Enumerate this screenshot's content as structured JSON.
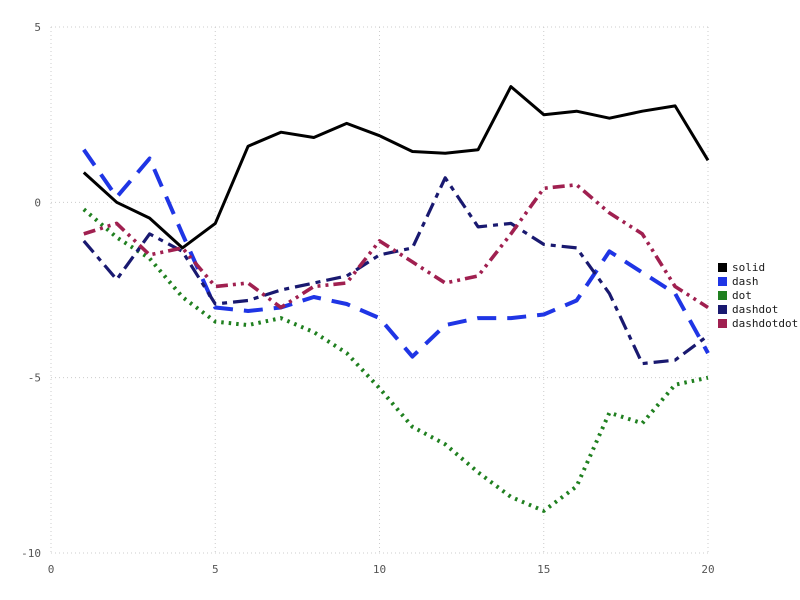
{
  "chart_data": {
    "type": "line",
    "title": "",
    "xlabel": "",
    "ylabel": "",
    "xlim": [
      0,
      20
    ],
    "ylim": [
      -10,
      5
    ],
    "xticks": [
      0,
      5,
      10,
      15,
      20
    ],
    "yticks": [
      -10,
      -5,
      0,
      5
    ],
    "grid": true,
    "legend_position": "right",
    "x": [
      1,
      2,
      3,
      4,
      5,
      6,
      7,
      8,
      9,
      10,
      11,
      12,
      13,
      14,
      15,
      16,
      17,
      18,
      19,
      20
    ],
    "series": [
      {
        "name": "solid",
        "color": "#000000",
        "style": "solid",
        "values": [
          0.85,
          0.0,
          -0.45,
          -1.3,
          -0.6,
          1.6,
          2.0,
          1.85,
          2.25,
          1.9,
          1.45,
          1.4,
          1.5,
          3.3,
          2.5,
          2.6,
          2.4,
          2.6,
          2.75,
          1.2
        ]
      },
      {
        "name": "dash",
        "color": "#1f35e5",
        "style": "dash",
        "values": [
          1.5,
          0.15,
          1.25,
          -0.9,
          -3.0,
          -3.1,
          -3.0,
          -2.7,
          -2.9,
          -3.3,
          -4.4,
          -3.5,
          -3.3,
          -3.3,
          -3.2,
          -2.8,
          -1.4,
          -2.0,
          -2.6,
          -4.3
        ]
      },
      {
        "name": "dot",
        "color": "#208020",
        "style": "dot",
        "values": [
          -0.2,
          -1.0,
          -1.6,
          -2.7,
          -3.4,
          -3.5,
          -3.3,
          -3.7,
          -4.3,
          -5.3,
          -6.4,
          -6.9,
          -7.7,
          -8.4,
          -8.8,
          -8.1,
          -6.0,
          -6.3,
          -5.2,
          -5.0
        ]
      },
      {
        "name": "dashdot",
        "color": "#191970",
        "style": "dashdot",
        "values": [
          -1.1,
          -2.2,
          -0.9,
          -1.4,
          -2.9,
          -2.8,
          -2.5,
          -2.3,
          -2.1,
          -1.5,
          -1.3,
          0.7,
          -0.7,
          -0.6,
          -1.2,
          -1.3,
          -2.6,
          -4.6,
          -4.5,
          -3.8
        ]
      },
      {
        "name": "dashdotdot",
        "color": "#a02050",
        "style": "dashdotdot",
        "values": [
          -0.9,
          -0.6,
          -1.5,
          -1.3,
          -2.4,
          -2.3,
          -3.0,
          -2.4,
          -2.3,
          -1.1,
          -1.7,
          -2.3,
          -2.1,
          -0.9,
          0.4,
          0.5,
          -0.3,
          -0.9,
          -2.4,
          -3.0
        ]
      }
    ],
    "grid_color": "#cccccc",
    "tick_label_color": "#555555"
  }
}
